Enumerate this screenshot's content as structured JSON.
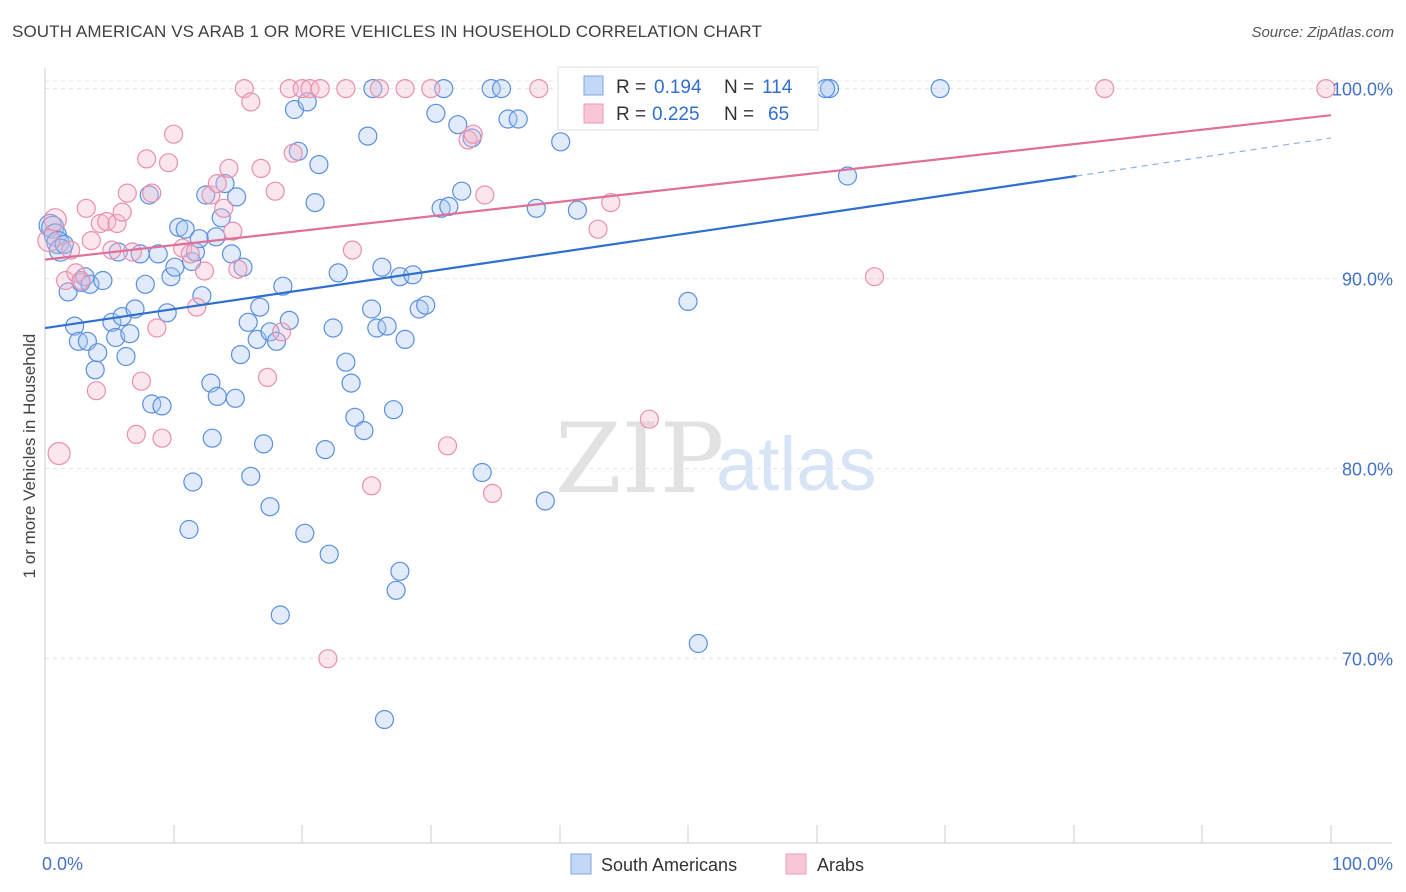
{
  "title": "SOUTH AMERICAN VS ARAB 1 OR MORE VEHICLES IN HOUSEHOLD CORRELATION CHART",
  "source": "Source: ZipAtlas.com",
  "watermark": {
    "zip": "ZIP",
    "atlas": "atlas"
  },
  "legend": {
    "r_label": "R =",
    "n_label": "N =",
    "entries": [
      {
        "r": "0.194",
        "n": "114"
      },
      {
        "r": "0.225",
        "n": "65"
      }
    ]
  },
  "chart_data": {
    "type": "scatter",
    "ylabel": "1 or more Vehicles in Household",
    "x_tick_labels": [
      "0.0%",
      "100.0%"
    ],
    "y_tick_labels": [
      "70.0%",
      "80.0%",
      "90.0%",
      "100.0%"
    ],
    "y_ticks": [
      70,
      80,
      90,
      100
    ],
    "xlim": [
      0,
      100
    ],
    "ylim": [
      60.3,
      101.4
    ],
    "grid": true,
    "legend_position": "bottom",
    "series": [
      {
        "name": "South Americans",
        "color": "#6aa0e8",
        "trend_color": "#2f6fd0",
        "trend": {
          "x0": 0,
          "y0": 87.4,
          "x1": 80.2,
          "y1": 95.4,
          "dash_to_x": 100,
          "dash_to_y": 97.4
        },
        "points": [
          [
            0.4,
            92.8
          ],
          [
            0.6,
            92.7
          ],
          [
            0.8,
            92.3
          ],
          [
            1.0,
            91.9
          ],
          [
            1.2,
            91.5
          ],
          [
            1.5,
            91.8
          ],
          [
            1.8,
            89.3
          ],
          [
            2.3,
            87.5
          ],
          [
            2.6,
            86.7
          ],
          [
            2.8,
            89.8
          ],
          [
            3.1,
            90.1
          ],
          [
            3.3,
            86.7
          ],
          [
            3.5,
            89.7
          ],
          [
            3.9,
            85.2
          ],
          [
            4.1,
            86.1
          ],
          [
            4.5,
            89.9
          ],
          [
            5.2,
            87.7
          ],
          [
            5.5,
            86.9
          ],
          [
            5.7,
            91.4
          ],
          [
            6.0,
            88.0
          ],
          [
            6.3,
            85.9
          ],
          [
            6.6,
            87.1
          ],
          [
            7.0,
            88.4
          ],
          [
            7.4,
            91.3
          ],
          [
            7.8,
            89.7
          ],
          [
            8.1,
            94.4
          ],
          [
            8.3,
            83.4
          ],
          [
            8.8,
            91.3
          ],
          [
            9.1,
            83.3
          ],
          [
            9.5,
            88.2
          ],
          [
            9.8,
            90.1
          ],
          [
            10.1,
            90.6
          ],
          [
            10.4,
            92.7
          ],
          [
            10.9,
            92.6
          ],
          [
            11.4,
            90.9
          ],
          [
            11.7,
            91.4
          ],
          [
            12.0,
            92.1
          ],
          [
            12.2,
            89.1
          ],
          [
            12.5,
            94.4
          ],
          [
            12.9,
            84.5
          ],
          [
            13.3,
            92.2
          ],
          [
            13.7,
            93.2
          ],
          [
            14.0,
            95.0
          ],
          [
            14.5,
            91.3
          ],
          [
            14.9,
            94.3
          ],
          [
            15.4,
            90.6
          ],
          [
            15.8,
            87.7
          ],
          [
            16.5,
            86.8
          ],
          [
            16.7,
            88.5
          ],
          [
            17.5,
            87.2
          ],
          [
            18.0,
            86.7
          ],
          [
            18.5,
            89.6
          ],
          [
            19.0,
            87.8
          ],
          [
            19.4,
            98.9
          ],
          [
            19.7,
            96.7
          ],
          [
            20.4,
            99.3
          ],
          [
            21.0,
            94.0
          ],
          [
            21.3,
            96.0
          ],
          [
            22.4,
            87.4
          ],
          [
            22.8,
            90.3
          ],
          [
            23.4,
            85.6
          ],
          [
            23.8,
            84.5
          ],
          [
            24.1,
            82.7
          ],
          [
            24.8,
            82.0
          ],
          [
            25.1,
            97.5
          ],
          [
            25.4,
            88.4
          ],
          [
            25.8,
            87.4
          ],
          [
            26.2,
            90.6
          ],
          [
            26.6,
            87.5
          ],
          [
            27.1,
            83.1
          ],
          [
            27.6,
            90.1
          ],
          [
            28.0,
            86.8
          ],
          [
            28.6,
            90.2
          ],
          [
            29.1,
            88.4
          ],
          [
            29.6,
            88.6
          ],
          [
            30.4,
            98.7
          ],
          [
            30.8,
            93.7
          ],
          [
            31.4,
            93.8
          ],
          [
            32.1,
            98.1
          ],
          [
            32.4,
            94.6
          ],
          [
            33.2,
            97.4
          ],
          [
            34.0,
            79.8
          ],
          [
            34.7,
            100.0
          ],
          [
            35.5,
            100.0
          ],
          [
            36.0,
            98.4
          ],
          [
            36.8,
            98.4
          ],
          [
            38.2,
            93.7
          ],
          [
            38.9,
            78.3
          ],
          [
            40.1,
            97.2
          ],
          [
            41.4,
            93.6
          ],
          [
            11.2,
            76.8
          ],
          [
            11.5,
            79.3
          ],
          [
            13.0,
            81.6
          ],
          [
            13.4,
            83.8
          ],
          [
            14.8,
            83.7
          ],
          [
            15.2,
            86.0
          ],
          [
            16.0,
            79.6
          ],
          [
            17.0,
            81.3
          ],
          [
            17.5,
            78.0
          ],
          [
            18.3,
            72.3
          ],
          [
            20.2,
            76.6
          ],
          [
            21.8,
            81.0
          ],
          [
            22.1,
            75.5
          ],
          [
            25.5,
            100.0
          ],
          [
            26.4,
            66.8
          ],
          [
            27.3,
            73.6
          ],
          [
            27.6,
            74.6
          ],
          [
            31.0,
            100.0
          ],
          [
            50.0,
            88.8
          ],
          [
            50.8,
            70.8
          ],
          [
            62.4,
            95.4
          ],
          [
            69.6,
            100.0
          ],
          [
            61.0,
            100.0
          ],
          [
            60.7,
            100.0
          ]
        ]
      },
      {
        "name": "Arabs",
        "color": "#f0a0b8",
        "trend_color": "#e07098",
        "trend": {
          "x0": 0,
          "y0": 91.0,
          "x1": 100,
          "y1": 98.6
        },
        "points": [
          [
            0.3,
            92.0
          ],
          [
            0.8,
            93.1
          ],
          [
            1.1,
            80.8
          ],
          [
            1.6,
            89.9
          ],
          [
            2.0,
            91.5
          ],
          [
            2.4,
            90.3
          ],
          [
            2.8,
            89.9
          ],
          [
            3.2,
            93.7
          ],
          [
            3.6,
            92.0
          ],
          [
            4.0,
            84.1
          ],
          [
            4.3,
            92.9
          ],
          [
            4.8,
            93.0
          ],
          [
            5.2,
            91.5
          ],
          [
            5.6,
            92.9
          ],
          [
            6.0,
            93.5
          ],
          [
            6.4,
            94.5
          ],
          [
            6.8,
            91.4
          ],
          [
            7.1,
            81.8
          ],
          [
            7.5,
            84.6
          ],
          [
            7.9,
            96.3
          ],
          [
            8.3,
            94.5
          ],
          [
            8.7,
            87.4
          ],
          [
            9.1,
            81.6
          ],
          [
            9.6,
            96.1
          ],
          [
            10.0,
            97.6
          ],
          [
            10.7,
            91.6
          ],
          [
            11.3,
            91.3
          ],
          [
            11.8,
            88.5
          ],
          [
            12.4,
            90.4
          ],
          [
            12.9,
            94.4
          ],
          [
            13.4,
            95.0
          ],
          [
            13.9,
            93.7
          ],
          [
            14.3,
            95.8
          ],
          [
            14.6,
            92.5
          ],
          [
            15.0,
            90.5
          ],
          [
            15.5,
            100.0
          ],
          [
            16.0,
            99.3
          ],
          [
            16.8,
            95.8
          ],
          [
            17.3,
            84.8
          ],
          [
            17.9,
            94.6
          ],
          [
            18.4,
            87.2
          ],
          [
            19.0,
            100.0
          ],
          [
            19.3,
            96.6
          ],
          [
            20.0,
            100.0
          ],
          [
            20.6,
            100.0
          ],
          [
            21.4,
            100.0
          ],
          [
            22.0,
            70.0
          ],
          [
            23.4,
            100.0
          ],
          [
            23.9,
            91.5
          ],
          [
            25.4,
            79.1
          ],
          [
            26.0,
            100.0
          ],
          [
            28.0,
            100.0
          ],
          [
            30.0,
            100.0
          ],
          [
            31.3,
            81.2
          ],
          [
            32.9,
            97.3
          ],
          [
            33.3,
            97.6
          ],
          [
            34.2,
            94.4
          ],
          [
            34.8,
            78.7
          ],
          [
            38.4,
            100.0
          ],
          [
            43.0,
            92.6
          ],
          [
            44.0,
            94.0
          ],
          [
            47.0,
            82.6
          ],
          [
            64.5,
            90.1
          ],
          [
            82.4,
            100.0
          ],
          [
            99.6,
            100.0
          ]
        ]
      }
    ]
  }
}
